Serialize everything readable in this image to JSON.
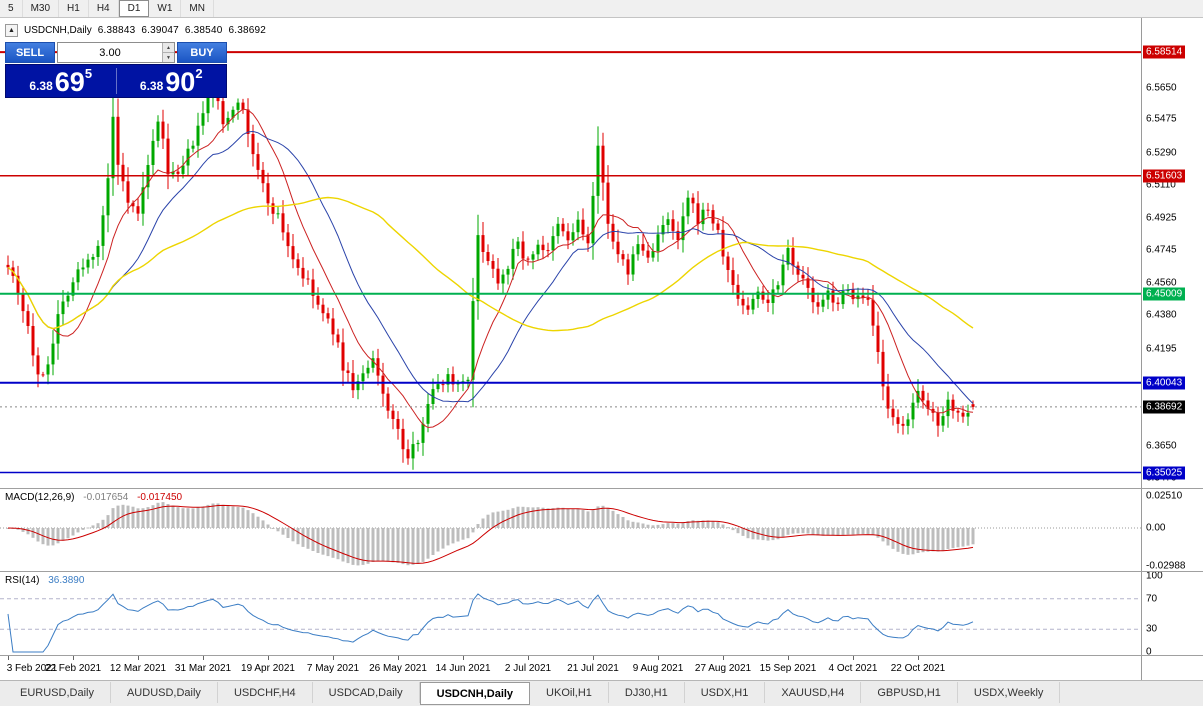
{
  "toolbar": {
    "timeframes": [
      "5",
      "M30",
      "H1",
      "H4",
      "D1",
      "W1",
      "MN"
    ],
    "active": "D1"
  },
  "chart": {
    "collapse_icon": "▲",
    "title": "USDCNH,Daily",
    "ohlc": {
      "open": "6.38843",
      "high": "6.39047",
      "low": "6.38540",
      "close": "6.38692"
    }
  },
  "trade_panel": {
    "sell_label": "SELL",
    "buy_label": "BUY",
    "volume": "3.00",
    "spinner_up": "▲",
    "spinner_down": "▼",
    "sell": {
      "prefix": "6.38",
      "big": "69",
      "sup": "5"
    },
    "buy": {
      "prefix": "6.38",
      "big": "90",
      "sup": "2"
    }
  },
  "price_axis": {
    "ticks": [
      "6.5650",
      "6.5475",
      "6.5290",
      "6.5110",
      "6.4925",
      "6.4745",
      "6.4560",
      "6.4380",
      "6.4195",
      "6.3650",
      "6.3470"
    ],
    "levels": [
      {
        "label": "6.58514",
        "price": 6.58514,
        "color": "#cc0000",
        "width": 2
      },
      {
        "label": "6.51603",
        "price": 6.51603,
        "color": "#cc0000",
        "width": 1.5
      },
      {
        "label": "6.45009",
        "price": 6.45009,
        "color": "#00b050",
        "width": 2
      },
      {
        "label": "6.40043",
        "price": 6.40043,
        "color": "#0000c8",
        "width": 2
      },
      {
        "label": "6.35025",
        "price": 6.35025,
        "color": "#0000c8",
        "width": 1.5
      }
    ],
    "current": {
      "label": "6.38692",
      "price": 6.38692,
      "color": "#000000"
    }
  },
  "chart_data": {
    "type": "candlestick",
    "symbol": "USDCNH",
    "timeframe": "Daily",
    "ylim": [
      6.3416,
      6.6042
    ],
    "bar_count": 194,
    "bars_per_label": 13,
    "x_labels": [
      "3 Feb 2021",
      "22 Feb 2021",
      "12 Mar 2021",
      "31 Mar 2021",
      "19 Apr 2021",
      "7 May 2021",
      "26 May 2021",
      "14 Jun 2021",
      "2 Jul 2021",
      "21 Jul 2021",
      "9 Aug 2021",
      "27 Aug 2021",
      "15 Sep 2021",
      "4 Oct 2021",
      "22 Oct 2021"
    ],
    "last_bar": {
      "open": 6.38843,
      "high": 6.39047,
      "low": 6.3854,
      "close": 6.38692
    },
    "close_path_anchors": [
      [
        0,
        6.468
      ],
      [
        2,
        6.452
      ],
      [
        4,
        6.432
      ],
      [
        6,
        6.402
      ],
      [
        8,
        6.412
      ],
      [
        10,
        6.438
      ],
      [
        12,
        6.452
      ],
      [
        14,
        6.462
      ],
      [
        16,
        6.468
      ],
      [
        18,
        6.478
      ],
      [
        20,
        6.512
      ],
      [
        21,
        6.548
      ],
      [
        22,
        6.522
      ],
      [
        24,
        6.498
      ],
      [
        26,
        6.496
      ],
      [
        28,
        6.52
      ],
      [
        30,
        6.548
      ],
      [
        32,
        6.52
      ],
      [
        34,
        6.514
      ],
      [
        36,
        6.528
      ],
      [
        38,
        6.542
      ],
      [
        41,
        6.566
      ],
      [
        43,
        6.545
      ],
      [
        46,
        6.56
      ],
      [
        48,
        6.54
      ],
      [
        50,
        6.518
      ],
      [
        52,
        6.502
      ],
      [
        54,
        6.493
      ],
      [
        57,
        6.47
      ],
      [
        60,
        6.455
      ],
      [
        63,
        6.438
      ],
      [
        65,
        6.43
      ],
      [
        67,
        6.41
      ],
      [
        69,
        6.398
      ],
      [
        71,
        6.404
      ],
      [
        73,
        6.412
      ],
      [
        75,
        6.394
      ],
      [
        77,
        6.38
      ],
      [
        80,
        6.357
      ],
      [
        82,
        6.37
      ],
      [
        84,
        6.39
      ],
      [
        86,
        6.4
      ],
      [
        88,
        6.404
      ],
      [
        90,
        6.4
      ],
      [
        92,
        6.405
      ],
      [
        94,
        6.482
      ],
      [
        96,
        6.47
      ],
      [
        98,
        6.458
      ],
      [
        100,
        6.467
      ],
      [
        102,
        6.478
      ],
      [
        104,
        6.467
      ],
      [
        106,
        6.479
      ],
      [
        108,
        6.472
      ],
      [
        110,
        6.488
      ],
      [
        112,
        6.48
      ],
      [
        114,
        6.49
      ],
      [
        116,
        6.478
      ],
      [
        118,
        6.53
      ],
      [
        120,
        6.492
      ],
      [
        122,
        6.47
      ],
      [
        124,
        6.463
      ],
      [
        126,
        6.478
      ],
      [
        128,
        6.47
      ],
      [
        130,
        6.483
      ],
      [
        132,
        6.49
      ],
      [
        134,
        6.479
      ],
      [
        136,
        6.503
      ],
      [
        138,
        6.492
      ],
      [
        140,
        6.498
      ],
      [
        142,
        6.483
      ],
      [
        144,
        6.462
      ],
      [
        146,
        6.448
      ],
      [
        148,
        6.441
      ],
      [
        150,
        6.452
      ],
      [
        152,
        6.446
      ],
      [
        154,
        6.458
      ],
      [
        156,
        6.476
      ],
      [
        158,
        6.462
      ],
      [
        160,
        6.452
      ],
      [
        162,
        6.441
      ],
      [
        164,
        6.45
      ],
      [
        166,
        6.446
      ],
      [
        168,
        6.452
      ],
      [
        170,
        6.448
      ],
      [
        172,
        6.444
      ],
      [
        174,
        6.415
      ],
      [
        176,
        6.383
      ],
      [
        178,
        6.376
      ],
      [
        180,
        6.382
      ],
      [
        182,
        6.393
      ],
      [
        184,
        6.386
      ],
      [
        186,
        6.379
      ],
      [
        188,
        6.39
      ],
      [
        190,
        6.383
      ],
      [
        193,
        6.38692
      ]
    ],
    "colors": {
      "up": "#00a800",
      "down": "#e00000"
    },
    "moving_averages": [
      {
        "period": 10,
        "color": "#cc2222",
        "width": 1
      },
      {
        "period": 21,
        "color": "#2b44aa",
        "width": 1
      },
      {
        "period": 55,
        "color": "#edd500",
        "width": 1.4
      }
    ],
    "macd": {
      "label": "MACD(12,26,9)",
      "v1": "-0.017654",
      "v2": "-0.017450",
      "fast": 12,
      "slow": 26,
      "signal": 9,
      "axis": [
        "0.02510",
        "0.00",
        "-0.02988"
      ],
      "histogram_color": "#bdbdbd",
      "signal_color": "#cc0000"
    },
    "rsi": {
      "label": "RSI(14)",
      "value": "36.3890",
      "period": 14,
      "axis": [
        "100",
        "70",
        "30",
        "0"
      ],
      "levels": [
        70,
        30
      ],
      "color": "#3b7dc4",
      "level_color": "#b4b4cc"
    }
  },
  "tabs": {
    "items": [
      "EURUSD,Daily",
      "AUDUSD,Daily",
      "USDCHF,H4",
      "USDCAD,Daily",
      "USDCNH,Daily",
      "UKOil,H1",
      "DJ30,H1",
      "USDX,H1",
      "XAUUSD,H4",
      "GBPUSD,H1",
      "USDX,Weekly"
    ],
    "active": "USDCNH,Daily"
  }
}
